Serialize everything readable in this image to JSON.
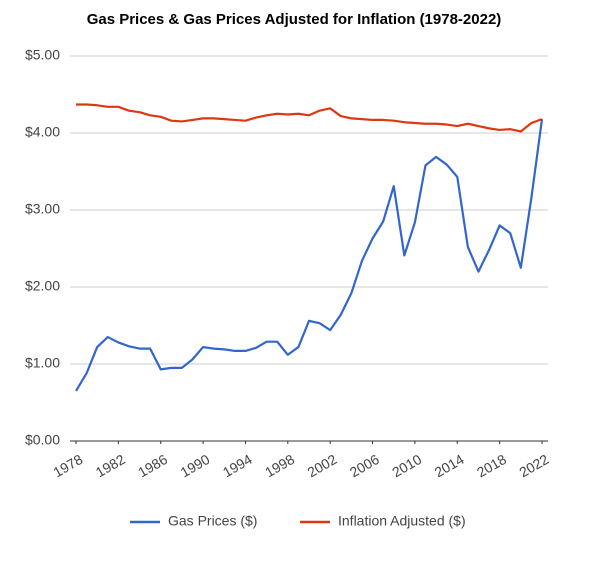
{
  "chart_data": {
    "type": "line",
    "title": "Gas Prices & Gas Prices Adjusted for Inflation (1978-2022)",
    "x": [
      1978,
      1979,
      1980,
      1981,
      1982,
      1983,
      1984,
      1985,
      1986,
      1987,
      1988,
      1989,
      1990,
      1991,
      1992,
      1993,
      1994,
      1995,
      1996,
      1997,
      1998,
      1999,
      2000,
      2001,
      2002,
      2003,
      2004,
      2005,
      2006,
      2007,
      2008,
      2009,
      2010,
      2011,
      2012,
      2013,
      2014,
      2015,
      2016,
      2017,
      2018,
      2019,
      2020,
      2021,
      2022
    ],
    "series": [
      {
        "name": "Gas Prices ($)",
        "color": "#3366cc",
        "values": [
          0.65,
          0.88,
          1.22,
          1.35,
          1.28,
          1.23,
          1.2,
          1.2,
          0.93,
          0.95,
          0.95,
          1.06,
          1.22,
          1.2,
          1.19,
          1.17,
          1.17,
          1.21,
          1.29,
          1.29,
          1.12,
          1.22,
          1.56,
          1.53,
          1.44,
          1.64,
          1.92,
          2.34,
          2.63,
          2.85,
          3.31,
          2.41,
          2.84,
          3.58,
          3.69,
          3.59,
          3.43,
          2.52,
          2.2,
          2.48,
          2.8,
          2.7,
          2.25,
          3.16,
          4.18
        ]
      },
      {
        "name": "Inflation Adjusted ($)",
        "color": "#dc3912",
        "values": [
          4.37,
          4.37,
          4.36,
          4.34,
          4.34,
          4.29,
          4.27,
          4.23,
          4.21,
          4.16,
          4.15,
          4.17,
          4.19,
          4.19,
          4.18,
          4.17,
          4.16,
          4.2,
          4.23,
          4.25,
          4.24,
          4.25,
          4.23,
          4.29,
          4.32,
          4.22,
          4.19,
          4.18,
          4.17,
          4.17,
          4.16,
          4.14,
          4.13,
          4.12,
          4.12,
          4.11,
          4.09,
          4.12,
          4.09,
          4.06,
          4.04,
          4.05,
          4.02,
          4.13,
          4.18
        ]
      }
    ],
    "xlim": [
      1978,
      2022
    ],
    "xticks": [
      1978,
      1982,
      1986,
      1990,
      1994,
      1998,
      2002,
      2006,
      2010,
      2014,
      2018,
      2022
    ],
    "ylim": [
      0,
      5
    ],
    "yticks": [
      {
        "value": 0,
        "label": "$0.00"
      },
      {
        "value": 1,
        "label": "$1.00"
      },
      {
        "value": 2,
        "label": "$2.00"
      },
      {
        "value": 3,
        "label": "$3.00"
      },
      {
        "value": 4,
        "label": "$4.00"
      },
      {
        "value": 5,
        "label": "$5.00"
      }
    ],
    "grid": true,
    "legend": "bottom"
  }
}
